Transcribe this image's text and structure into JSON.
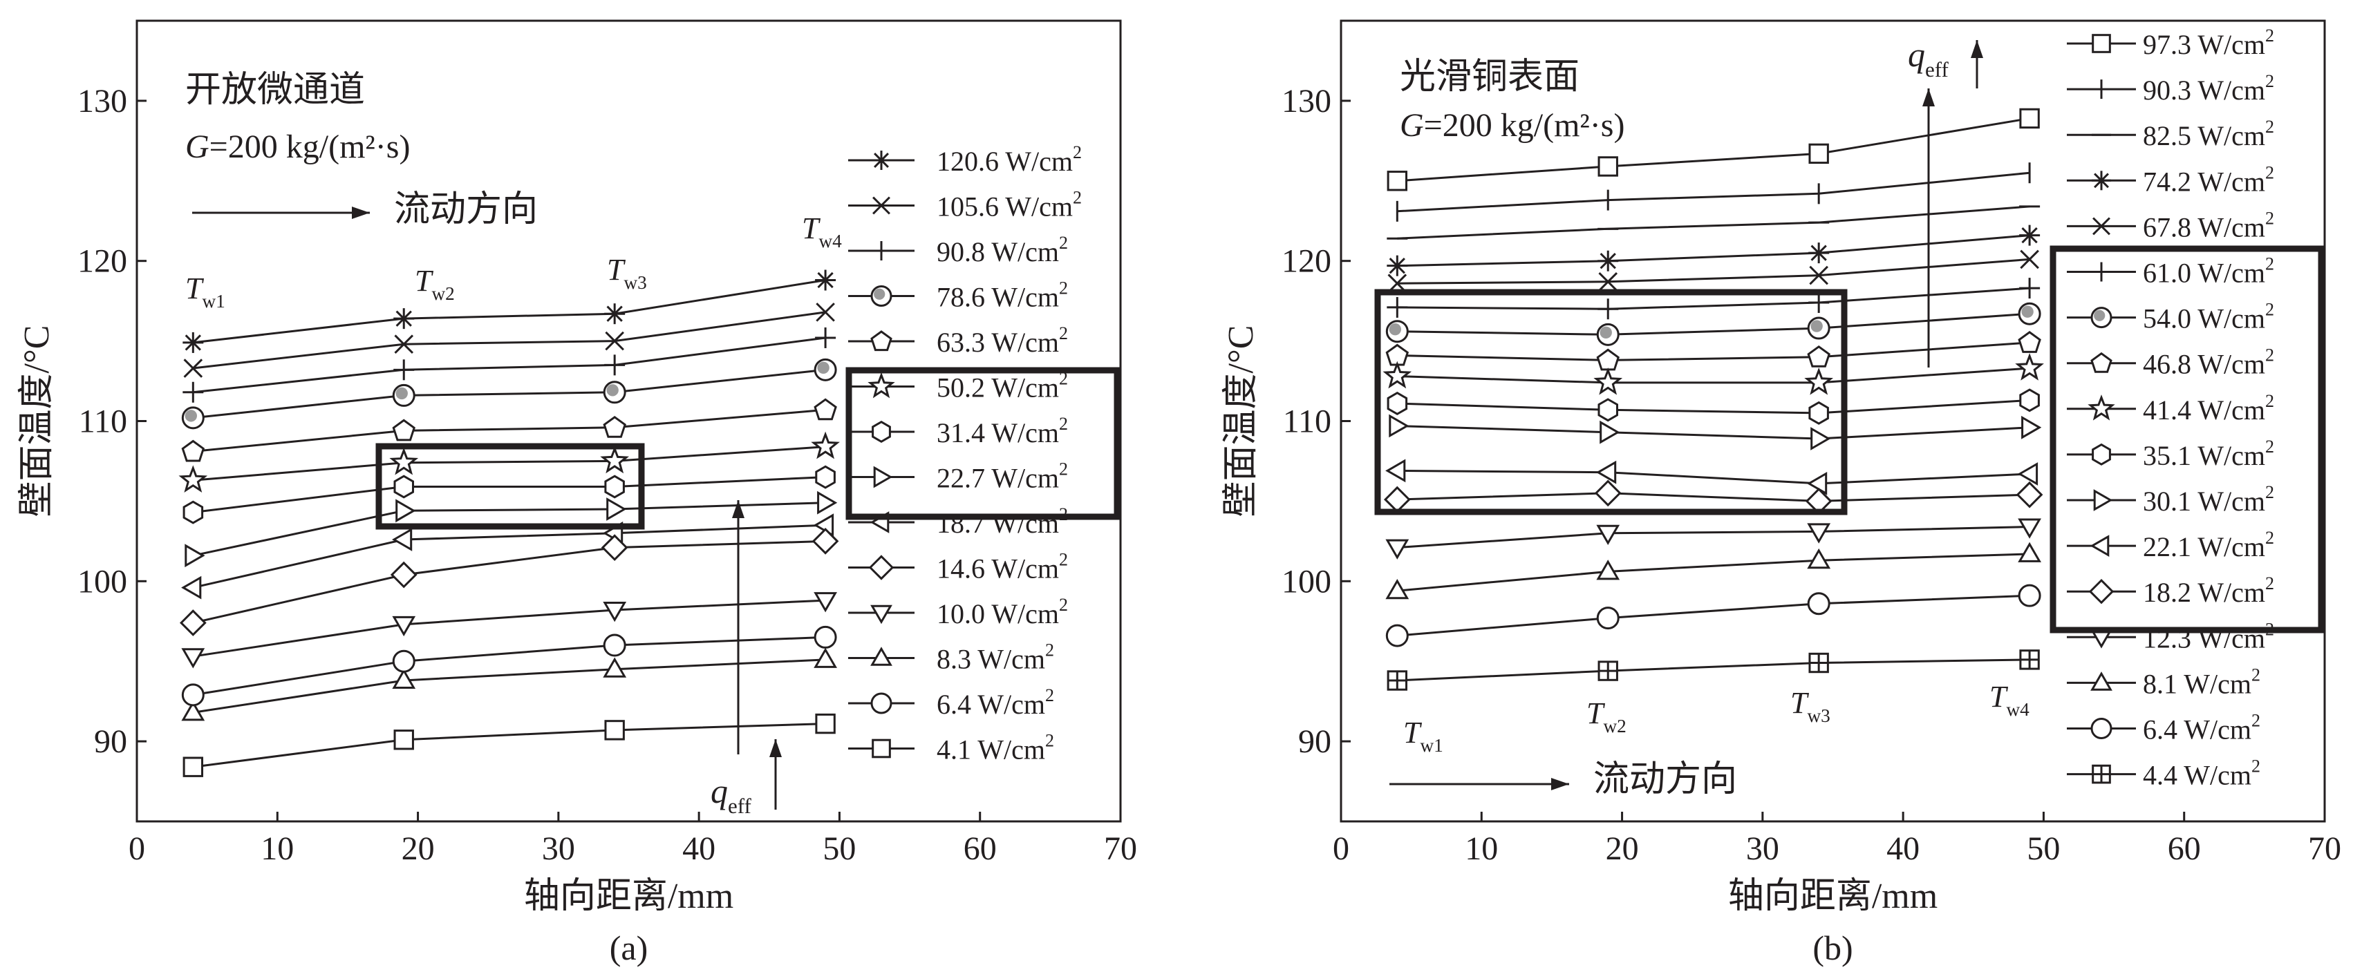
{
  "chart_data": [
    {
      "type": "line",
      "panel_label": "(a)",
      "xlabel": "轴向距离/mm",
      "ylabel": "壁面温度/°C",
      "xlim": [
        0,
        70
      ],
      "ylim": [
        85,
        135
      ],
      "xticks": [
        0,
        10,
        20,
        30,
        40,
        50,
        60,
        70
      ],
      "yticks": [
        90,
        100,
        110,
        120,
        130
      ],
      "grid": false,
      "legend_position": "right",
      "annotations": {
        "surface": "开放微通道",
        "mass_flux_G": "G",
        "mass_flux_rest": "=200 kg/(m²·s)",
        "flow_direction": "流动方向",
        "heat_flux_q": "q",
        "heat_flux_sub": "eff"
      },
      "station_labels": [
        {
          "T": "T",
          "sub": "w1"
        },
        {
          "T": "T",
          "sub": "w2"
        },
        {
          "T": "T",
          "sub": "w3"
        },
        {
          "T": "T",
          "sub": "w4"
        }
      ],
      "x": [
        4,
        19,
        34,
        49
      ],
      "highlighted_series": [
        "50.2 W/cm²",
        "31.4 W/cm²",
        "22.7 W/cm²"
      ],
      "series": [
        {
          "name": "120.6 W/cm²",
          "marker": "asterisk",
          "values": [
            114.9,
            116.4,
            116.7,
            118.8
          ]
        },
        {
          "name": "105.6 W/cm²",
          "marker": "x",
          "values": [
            113.3,
            114.8,
            115.0,
            116.8
          ]
        },
        {
          "name": "90.8 W/cm²",
          "marker": "plus",
          "values": [
            111.8,
            113.2,
            113.5,
            115.2
          ]
        },
        {
          "name": "78.6 W/cm²",
          "marker": "shaded-circle",
          "values": [
            110.2,
            111.6,
            111.8,
            113.2
          ]
        },
        {
          "name": "63.3 W/cm²",
          "marker": "pentagon",
          "values": [
            108.1,
            109.4,
            109.6,
            110.7
          ]
        },
        {
          "name": "50.2 W/cm²",
          "marker": "star",
          "values": [
            106.3,
            107.4,
            107.5,
            108.4
          ]
        },
        {
          "name": "31.4 W/cm²",
          "marker": "hexagon",
          "values": [
            104.3,
            105.9,
            105.9,
            106.5
          ]
        },
        {
          "name": "22.7 W/cm²",
          "marker": "triangle-right",
          "values": [
            101.6,
            104.4,
            104.5,
            104.9
          ]
        },
        {
          "name": "18.7 W/cm²",
          "marker": "triangle-left",
          "values": [
            99.6,
            102.6,
            103.0,
            103.5
          ]
        },
        {
          "name": "14.6 W/cm²",
          "marker": "diamond",
          "values": [
            97.4,
            100.4,
            102.1,
            102.5
          ]
        },
        {
          "name": "10.0 W/cm²",
          "marker": "triangle-down",
          "values": [
            95.3,
            97.3,
            98.2,
            98.8
          ]
        },
        {
          "name": "8.3 W/cm²",
          "marker": "triangle-up",
          "values": [
            91.8,
            93.8,
            94.5,
            95.1
          ]
        },
        {
          "name": "6.4 W/cm²",
          "marker": "circle",
          "values": [
            92.9,
            95.0,
            96.0,
            96.5
          ]
        },
        {
          "name": "4.1 W/cm²",
          "marker": "square",
          "values": [
            88.4,
            90.1,
            90.7,
            91.1
          ]
        }
      ]
    },
    {
      "type": "line",
      "panel_label": "(b)",
      "xlabel": "轴向距离/mm",
      "ylabel": "壁面温度/°C",
      "xlim": [
        0,
        70
      ],
      "ylim": [
        85,
        135
      ],
      "xticks": [
        0,
        10,
        20,
        30,
        40,
        50,
        60,
        70
      ],
      "yticks": [
        90,
        100,
        110,
        120,
        130
      ],
      "grid": false,
      "legend_position": "right",
      "annotations": {
        "surface": "光滑铜表面",
        "mass_flux_G": "G",
        "mass_flux_rest": "=200 kg/(m²·s)",
        "flow_direction": "流动方向",
        "heat_flux_q": "q",
        "heat_flux_sub": "eff"
      },
      "station_labels": [
        {
          "T": "T",
          "sub": "w1"
        },
        {
          "T": "T",
          "sub": "w2"
        },
        {
          "T": "T",
          "sub": "w3"
        },
        {
          "T": "T",
          "sub": "w4"
        }
      ],
      "x": [
        4,
        19,
        34,
        49
      ],
      "highlighted_series": [
        "61.0 W/cm²",
        "54.0 W/cm²",
        "46.8 W/cm²",
        "41.4 W/cm²",
        "35.1 W/cm²",
        "30.1 W/cm²",
        "22.1 W/cm²",
        "18.2 W/cm²"
      ],
      "series": [
        {
          "name": "97.3 W/cm²",
          "marker": "square",
          "values": [
            125.0,
            125.9,
            126.7,
            128.9
          ]
        },
        {
          "name": "90.3 W/cm²",
          "marker": "vbar",
          "values": [
            123.1,
            123.8,
            124.2,
            125.5
          ]
        },
        {
          "name": "82.5 W/cm²",
          "marker": "hbar",
          "values": [
            121.4,
            122.0,
            122.4,
            123.4
          ]
        },
        {
          "name": "74.2 W/cm²",
          "marker": "asterisk",
          "values": [
            119.7,
            120.0,
            120.5,
            121.6
          ]
        },
        {
          "name": "67.8 W/cm²",
          "marker": "x",
          "values": [
            118.6,
            118.7,
            119.1,
            120.1
          ]
        },
        {
          "name": "61.0 W/cm²",
          "marker": "plus",
          "values": [
            117.1,
            117.0,
            117.4,
            118.3
          ]
        },
        {
          "name": "54.0 W/cm²",
          "marker": "shaded-circle",
          "values": [
            115.6,
            115.4,
            115.8,
            116.7
          ]
        },
        {
          "name": "46.8 W/cm²",
          "marker": "pentagon",
          "values": [
            114.1,
            113.8,
            114.0,
            114.9
          ]
        },
        {
          "name": "41.4 W/cm²",
          "marker": "star",
          "values": [
            112.8,
            112.4,
            112.4,
            113.3
          ]
        },
        {
          "name": "35.1 W/cm²",
          "marker": "hexagon",
          "values": [
            111.1,
            110.7,
            110.5,
            111.3
          ]
        },
        {
          "name": "30.1 W/cm²",
          "marker": "triangle-right",
          "values": [
            109.7,
            109.3,
            108.9,
            109.6
          ]
        },
        {
          "name": "22.1 W/cm²",
          "marker": "triangle-left",
          "values": [
            106.9,
            106.8,
            106.1,
            106.7
          ]
        },
        {
          "name": "18.2 W/cm²",
          "marker": "diamond",
          "values": [
            105.1,
            105.5,
            105.0,
            105.4
          ]
        },
        {
          "name": "12.3 W/cm²",
          "marker": "triangle-down",
          "values": [
            102.1,
            103.0,
            103.1,
            103.4
          ]
        },
        {
          "name": "8.1 W/cm²",
          "marker": "triangle-up",
          "values": [
            99.4,
            100.6,
            101.3,
            101.7
          ]
        },
        {
          "name": "6.4 W/cm²",
          "marker": "circle",
          "values": [
            96.6,
            97.7,
            98.6,
            99.1
          ]
        },
        {
          "name": "4.4 W/cm²",
          "marker": "boxed-plus",
          "values": [
            93.8,
            94.4,
            94.9,
            95.1
          ]
        }
      ]
    }
  ]
}
